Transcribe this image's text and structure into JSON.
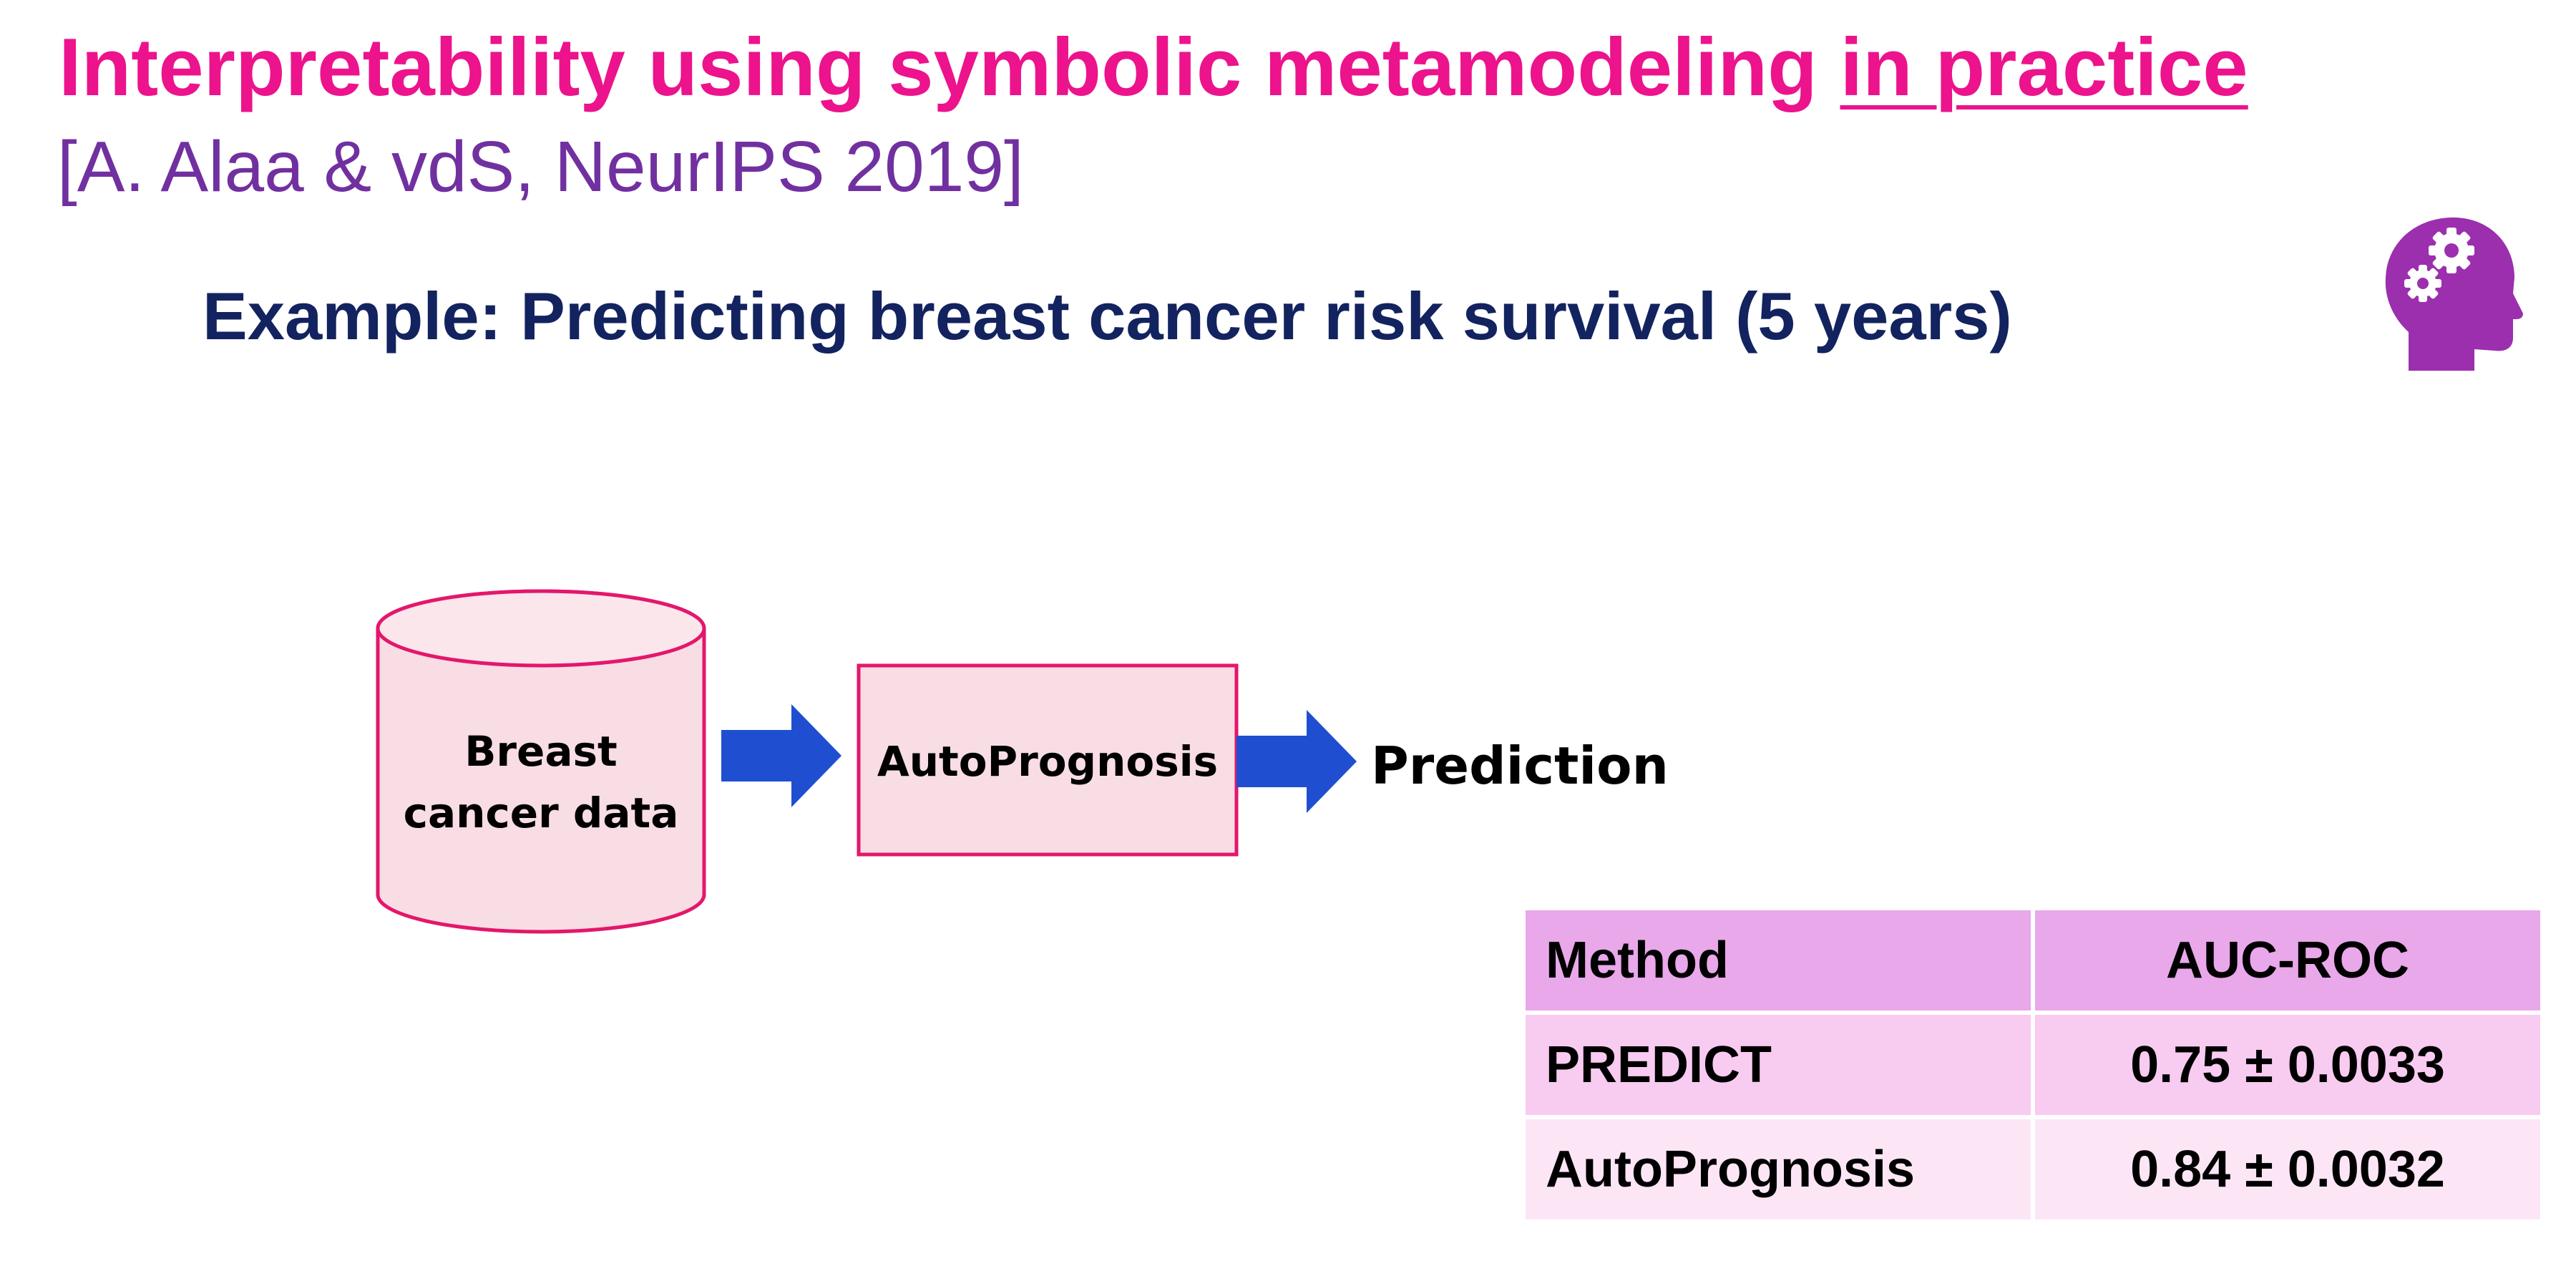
{
  "slide": {
    "title_main": "Interpretability using symbolic metamodeling ",
    "title_emphasis": "in practice",
    "citation": "[A. Alaa & vdS, NeurIPS 2019]",
    "subtitle": "Example: Predicting breast cancer risk survival (5 years)"
  },
  "diagram": {
    "data_node": {
      "line1": "Breast",
      "line2": "cancer data"
    },
    "model_node": "AutoPrognosis",
    "output_label": "Prediction"
  },
  "results_table": {
    "headers": [
      "Method",
      "AUC-ROC"
    ],
    "rows": [
      [
        "PREDICT",
        "0.75 ± 0.0033"
      ],
      [
        "AutoPrognosis",
        "0.84 ± 0.0032"
      ]
    ]
  },
  "colors": {
    "title": "#ec138c",
    "citation": "#7130a0",
    "subtitle": "#13235f",
    "node_fill": "#f8dde4",
    "node_stroke": "#e3176b",
    "arrow": "#1f4fd0",
    "icon": "#9b2fae",
    "table_header": "#e9a8ea",
    "table_row_1": "#f8cbf1",
    "table_row_2": "#fce6f6"
  },
  "icons": {
    "header_icon": "head-with-gears-icon"
  }
}
